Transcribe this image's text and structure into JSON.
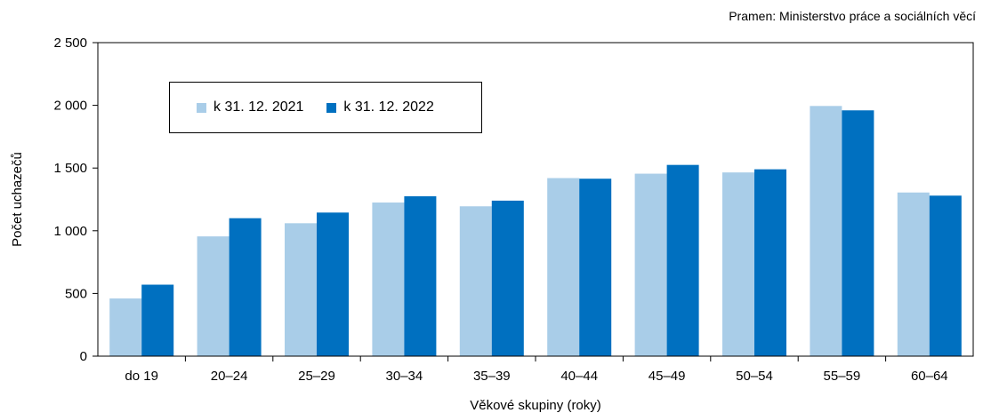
{
  "source_note": "Pramen: Ministerstvo práce a sociálních věcí",
  "colors": {
    "series_2021": "#a9cde8",
    "series_2022": "#0070c0"
  },
  "chart_data": {
    "type": "bar",
    "title": "",
    "xlabel": "Věkové skupiny (roky)",
    "ylabel": "Počet uchazečů",
    "ylim": [
      0,
      2500
    ],
    "yticks": [
      0,
      500,
      1000,
      1500,
      2000,
      2500
    ],
    "ytick_labels": [
      "0",
      "500",
      "1 000",
      "1 500",
      "2 000",
      "2 500"
    ],
    "categories": [
      "do 19",
      "20–24",
      "25–29",
      "30–34",
      "35–39",
      "40–44",
      "45–49",
      "50–54",
      "55–59",
      "60–64"
    ],
    "series": [
      {
        "name": "k 31. 12. 2021",
        "values": [
          460,
          955,
          1060,
          1225,
          1195,
          1420,
          1455,
          1465,
          1995,
          1305
        ]
      },
      {
        "name": "k 31. 12. 2022",
        "values": [
          570,
          1100,
          1145,
          1275,
          1240,
          1415,
          1525,
          1490,
          1960,
          1280
        ]
      }
    ],
    "grid": false,
    "legend_position": "top-left"
  }
}
